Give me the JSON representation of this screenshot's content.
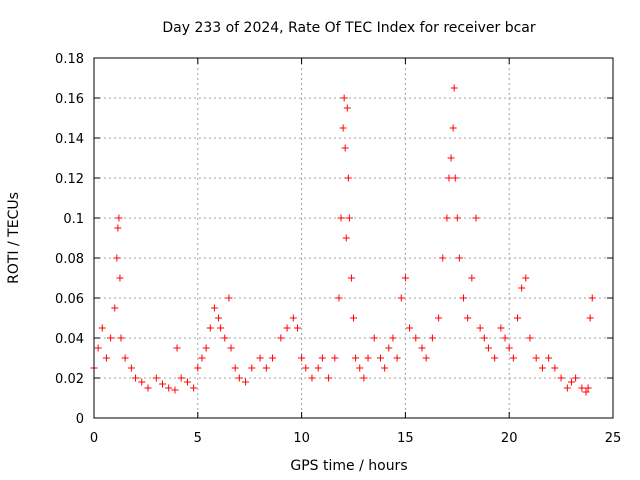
{
  "chart_data": {
    "type": "scatter",
    "title": "Day 233 of 2024, Rate Of TEC Index for receiver bcar",
    "xlabel": "GPS time / hours",
    "ylabel": "ROTI / TECUs",
    "xlim": [
      0,
      25
    ],
    "ylim": [
      0,
      0.18
    ],
    "x_ticks": [
      "0",
      "5",
      "10",
      "15",
      "20",
      "25"
    ],
    "y_ticks": [
      "0",
      "0.02",
      "0.04",
      "0.06",
      "0.08",
      "0.1",
      "0.12",
      "0.14",
      "0.16",
      "0.18"
    ],
    "grid": true,
    "marker": "+",
    "color": "#ff0000",
    "series": [
      {
        "name": "",
        "x": [
          0.0,
          0.2,
          0.4,
          0.6,
          0.8,
          1.0,
          1.1,
          1.15,
          1.2,
          1.25,
          1.3,
          1.5,
          1.8,
          2.0,
          2.3,
          2.6,
          3.0,
          3.3,
          3.6,
          3.9,
          4.0,
          4.2,
          4.5,
          4.8,
          5.0,
          5.2,
          5.4,
          5.6,
          5.8,
          6.0,
          6.1,
          6.3,
          6.5,
          6.6,
          6.8,
          7.0,
          7.3,
          7.6,
          8.0,
          8.3,
          8.6,
          9.0,
          9.3,
          9.6,
          9.8,
          10.0,
          10.2,
          10.5,
          10.8,
          11.0,
          11.3,
          11.6,
          11.8,
          11.9,
          12.0,
          12.05,
          12.1,
          12.15,
          12.2,
          12.25,
          12.3,
          12.4,
          12.5,
          12.6,
          12.8,
          13.0,
          13.2,
          13.5,
          13.8,
          14.0,
          14.2,
          14.4,
          14.6,
          14.8,
          15.0,
          15.2,
          15.5,
          15.8,
          16.0,
          16.3,
          16.6,
          16.8,
          17.0,
          17.1,
          17.2,
          17.3,
          17.35,
          17.4,
          17.5,
          17.6,
          17.8,
          18.0,
          18.2,
          18.4,
          18.6,
          18.8,
          19.0,
          19.3,
          19.6,
          19.8,
          20.0,
          20.2,
          20.4,
          20.6,
          20.8,
          21.0,
          21.3,
          21.6,
          21.9,
          22.2,
          22.5,
          22.8,
          23.0,
          23.2,
          23.5,
          23.7,
          23.8,
          23.9,
          24.0
        ],
        "values": [
          0.025,
          0.035,
          0.045,
          0.03,
          0.04,
          0.055,
          0.08,
          0.095,
          0.1,
          0.07,
          0.04,
          0.03,
          0.025,
          0.02,
          0.018,
          0.015,
          0.02,
          0.017,
          0.015,
          0.014,
          0.035,
          0.02,
          0.018,
          0.015,
          0.025,
          0.03,
          0.035,
          0.045,
          0.055,
          0.05,
          0.045,
          0.04,
          0.06,
          0.035,
          0.025,
          0.02,
          0.018,
          0.025,
          0.03,
          0.025,
          0.03,
          0.04,
          0.045,
          0.05,
          0.045,
          0.03,
          0.025,
          0.02,
          0.025,
          0.03,
          0.02,
          0.03,
          0.06,
          0.1,
          0.145,
          0.16,
          0.135,
          0.09,
          0.155,
          0.12,
          0.1,
          0.07,
          0.05,
          0.03,
          0.025,
          0.02,
          0.03,
          0.04,
          0.03,
          0.025,
          0.035,
          0.04,
          0.03,
          0.06,
          0.07,
          0.045,
          0.04,
          0.035,
          0.03,
          0.04,
          0.05,
          0.08,
          0.1,
          0.12,
          0.13,
          0.145,
          0.165,
          0.12,
          0.1,
          0.08,
          0.06,
          0.05,
          0.07,
          0.1,
          0.045,
          0.04,
          0.035,
          0.03,
          0.045,
          0.04,
          0.035,
          0.03,
          0.05,
          0.065,
          0.07,
          0.04,
          0.03,
          0.025,
          0.03,
          0.025,
          0.02,
          0.015,
          0.018,
          0.02,
          0.015,
          0.013,
          0.015,
          0.05,
          0.06
        ]
      }
    ]
  }
}
